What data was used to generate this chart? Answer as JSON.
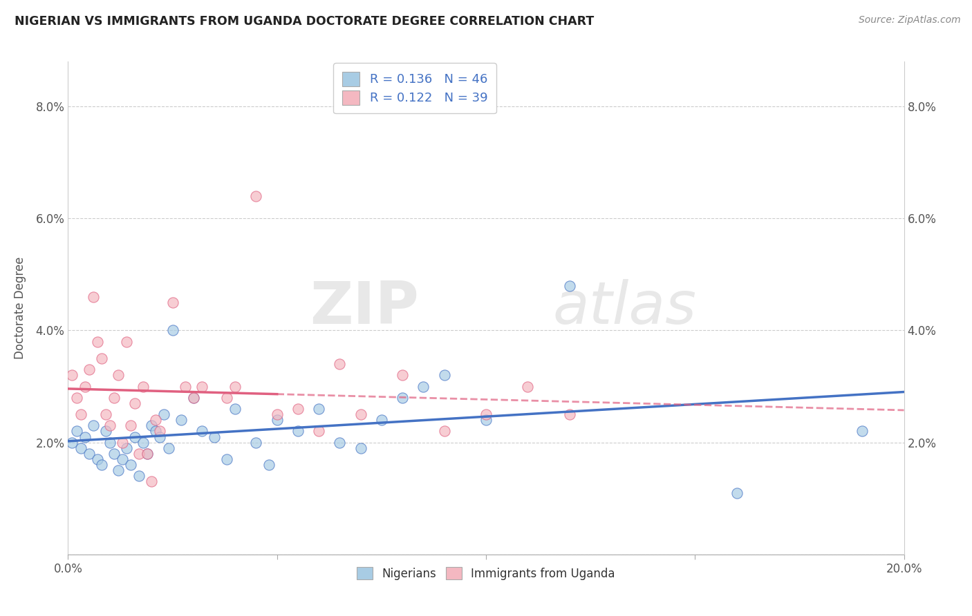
{
  "title": "NIGERIAN VS IMMIGRANTS FROM UGANDA DOCTORATE DEGREE CORRELATION CHART",
  "source": "Source: ZipAtlas.com",
  "ylabel": "Doctorate Degree",
  "xlim": [
    0.0,
    0.2
  ],
  "ylim": [
    0.0,
    0.088
  ],
  "xticks": [
    0.0,
    0.05,
    0.1,
    0.15,
    0.2
  ],
  "xticklabels": [
    "0.0%",
    "",
    "",
    "",
    "20.0%"
  ],
  "yticks": [
    0.0,
    0.02,
    0.04,
    0.06,
    0.08
  ],
  "yticklabels": [
    "",
    "2.0%",
    "4.0%",
    "6.0%",
    "8.0%"
  ],
  "nigerian_color": "#a8cce4",
  "uganda_color": "#f4b8c1",
  "nigerian_line_color": "#4472c4",
  "uganda_line_color": "#e06080",
  "legend_text_color": "#4472c4",
  "R_nigerian": "0.136",
  "N_nigerian": "46",
  "R_uganda": "0.122",
  "N_uganda": "39",
  "legend_nigerians": "Nigerians",
  "legend_uganda": "Immigrants from Uganda",
  "nigerian_x": [
    0.001,
    0.002,
    0.003,
    0.004,
    0.005,
    0.006,
    0.007,
    0.008,
    0.009,
    0.01,
    0.011,
    0.012,
    0.013,
    0.014,
    0.015,
    0.016,
    0.017,
    0.018,
    0.019,
    0.02,
    0.021,
    0.022,
    0.023,
    0.024,
    0.025,
    0.027,
    0.03,
    0.032,
    0.035,
    0.038,
    0.04,
    0.045,
    0.048,
    0.05,
    0.055,
    0.06,
    0.065,
    0.07,
    0.075,
    0.08,
    0.085,
    0.09,
    0.1,
    0.12,
    0.16,
    0.19
  ],
  "nigerian_y": [
    0.02,
    0.022,
    0.019,
    0.021,
    0.018,
    0.023,
    0.017,
    0.016,
    0.022,
    0.02,
    0.018,
    0.015,
    0.017,
    0.019,
    0.016,
    0.021,
    0.014,
    0.02,
    0.018,
    0.023,
    0.022,
    0.021,
    0.025,
    0.019,
    0.04,
    0.024,
    0.028,
    0.022,
    0.021,
    0.017,
    0.026,
    0.02,
    0.016,
    0.024,
    0.022,
    0.026,
    0.02,
    0.019,
    0.024,
    0.028,
    0.03,
    0.032,
    0.024,
    0.048,
    0.011,
    0.022
  ],
  "uganda_x": [
    0.001,
    0.002,
    0.003,
    0.004,
    0.005,
    0.006,
    0.007,
    0.008,
    0.009,
    0.01,
    0.011,
    0.012,
    0.013,
    0.014,
    0.015,
    0.016,
    0.017,
    0.018,
    0.019,
    0.02,
    0.021,
    0.022,
    0.025,
    0.028,
    0.03,
    0.032,
    0.038,
    0.04,
    0.045,
    0.05,
    0.055,
    0.06,
    0.065,
    0.07,
    0.08,
    0.09,
    0.1,
    0.11,
    0.12
  ],
  "uganda_y": [
    0.032,
    0.028,
    0.025,
    0.03,
    0.033,
    0.046,
    0.038,
    0.035,
    0.025,
    0.023,
    0.028,
    0.032,
    0.02,
    0.038,
    0.023,
    0.027,
    0.018,
    0.03,
    0.018,
    0.013,
    0.024,
    0.022,
    0.045,
    0.03,
    0.028,
    0.03,
    0.028,
    0.03,
    0.064,
    0.025,
    0.026,
    0.022,
    0.034,
    0.025,
    0.032,
    0.022,
    0.025,
    0.03,
    0.025
  ]
}
